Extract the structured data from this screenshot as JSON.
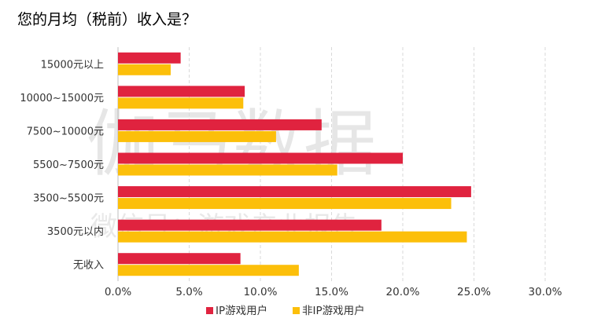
{
  "title": "您的月均（税前）收入是？",
  "watermark": {
    "main": "伽马数据",
    "sub": "微信号：游戏产业报告"
  },
  "chart_data": {
    "type": "bar",
    "orientation": "horizontal",
    "categories": [
      "15000元以上",
      "10000~15000元",
      "7500~10000元",
      "5500~7500元",
      "3500~5500元",
      "3500元以内",
      "无收入"
    ],
    "series": [
      {
        "name": "IP游戏用户",
        "color": "#e0233f",
        "values": [
          4.4,
          8.9,
          14.3,
          20.0,
          24.8,
          18.5,
          8.6
        ]
      },
      {
        "name": "非IP游戏用户",
        "color": "#fcbf0a",
        "values": [
          3.7,
          8.8,
          11.1,
          15.4,
          23.4,
          24.5,
          12.7
        ]
      }
    ],
    "xlim": [
      0,
      30
    ],
    "xticks": [
      "0.0%",
      "5.0%",
      "10.0%",
      "15.0%",
      "20.0%",
      "25.0%",
      "30.0%"
    ],
    "unit": "%",
    "grid": "vertical dashed",
    "legend": "bottom"
  }
}
